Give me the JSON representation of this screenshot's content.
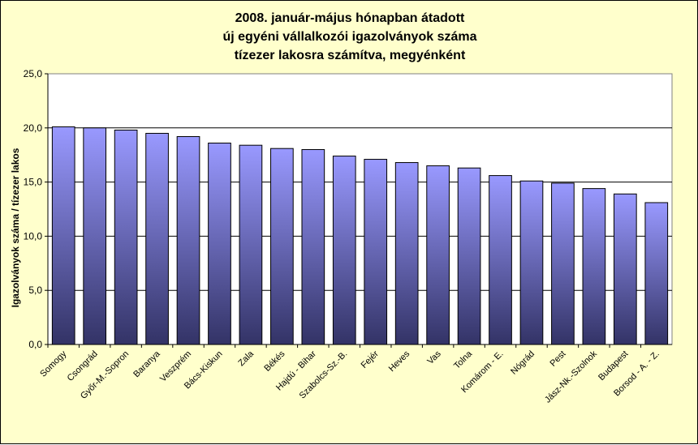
{
  "chart_data": {
    "type": "bar",
    "title_lines": [
      "2008. január-május hónapban átadott",
      "új egyéni vállalkozói  igazolványok száma",
      "tízezer lakosra számítva, megyénként"
    ],
    "xlabel": "",
    "ylabel": "Igazolványok száma / tízezer lakos",
    "ylim": [
      0,
      25
    ],
    "yticks": [
      "0,0",
      "5,0",
      "10,0",
      "15,0",
      "20,0",
      "25,0"
    ],
    "grid": true,
    "categories": [
      "Somogy",
      "Csongrád",
      "Győr-M.-Sopron",
      "Baranya",
      "Veszprém",
      "Bács-Kiskun",
      "Zala",
      "Békés",
      "Hajdú - Bihar",
      "Szabolcs-Sz.-B.",
      "Fejér",
      "Heves",
      "Vas",
      "Tolna",
      "Komárom - E.",
      "Nógrád",
      "Pest",
      "Jász-Nk.-Szolnok",
      "Budapest",
      "Borsod - A. - Z."
    ],
    "values": [
      20.1,
      20.0,
      19.8,
      19.5,
      19.2,
      18.6,
      18.4,
      18.1,
      18.0,
      17.4,
      17.1,
      16.8,
      16.5,
      16.3,
      15.6,
      15.1,
      14.9,
      14.4,
      13.9,
      13.1
    ],
    "colors": {
      "plot_bg": "#ffffff",
      "chart_bg": "#ffffcc",
      "bar_top": "#9999ff",
      "bar_bottom": "#333366"
    }
  }
}
